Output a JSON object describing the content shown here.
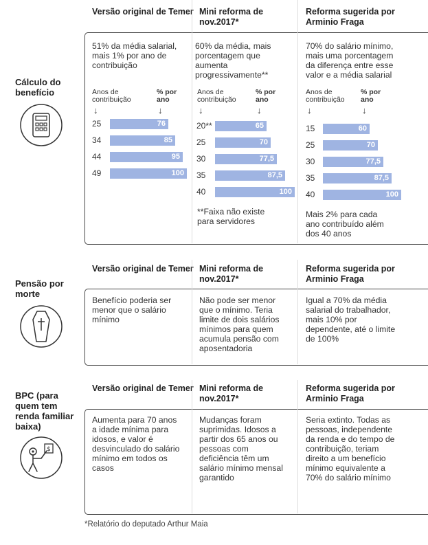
{
  "columns": [
    "Versão original de Temer",
    "Mini reforma de nov.2017*",
    "Reforma sugerida por Arminio Fraga"
  ],
  "sections": {
    "calculo": {
      "label": "Cálculo do benefício",
      "descriptions": [
        "51% da média salarial, mais 1% por ano de contribuição",
        "60% da média, mais porcentagem que aumenta progressivamente**",
        "70% do salário mínimo, mais uma porcentagem da diferença entre esse valor e a média salarial"
      ],
      "axis_left": "Anos de contribuição",
      "axis_right": "% por ano",
      "arrow": "↓",
      "note_mini": "**Faixa não existe para servidores",
      "note_fraga": "Mais 2% para cada ano contribuído além dos 40 anos"
    },
    "pensao": {
      "label": "Pensão por morte",
      "descriptions": [
        "Benefício poderia ser menor que o salário mínimo",
        "Não pode ser menor que o mínimo. Teria limite de dois salários mínimos para quem acumula pensão com aposentadoria",
        "Igual a 70% da média salarial do trabalhador, mais 10% por dependente, até o limite de 100%"
      ]
    },
    "bpc": {
      "label": "BPC (para quem tem renda familiar baixa)",
      "descriptions": [
        "Aumenta para 70 anos a idade mínima para idosos, e valor é desvinculado do salário mínimo em todos os casos",
        "Mudanças foram suprimidas. Idosos a partir dos 65 anos ou pessoas com deficiência têm um salário mínimo mensal garantido",
        "Seria extinto. Todas as pessoas, independente da renda e do tempo de contribuição, teriam direito a um benefício mínimo equivalente a 70% do salário mínimo"
      ]
    }
  },
  "footnote": "*Relatório do deputado Arthur Maia",
  "chart_data": [
    {
      "type": "bar",
      "name": "Versão original de Temer",
      "categories": [
        "25",
        "34",
        "44",
        "49"
      ],
      "values": [
        76,
        85,
        95,
        100
      ],
      "value_labels": [
        "76",
        "85",
        "95",
        "100"
      ],
      "xlabel": "Anos de contribuição",
      "ylabel": "% por ano"
    },
    {
      "type": "bar",
      "name": "Mini reforma de nov.2017*",
      "categories": [
        "20**",
        "25",
        "30",
        "35",
        "40"
      ],
      "values": [
        65,
        70,
        77.5,
        87.5,
        100
      ],
      "value_labels": [
        "65",
        "70",
        "77,5",
        "87,5",
        "100"
      ],
      "xlabel": "Anos de contribuição",
      "ylabel": "% por ano"
    },
    {
      "type": "bar",
      "name": "Reforma sugerida por Arminio Fraga",
      "categories": [
        "15",
        "25",
        "30",
        "35",
        "40"
      ],
      "values": [
        60,
        70,
        77.5,
        87.5,
        100
      ],
      "value_labels": [
        "60",
        "70",
        "77,5",
        "87,5",
        "100"
      ],
      "xlabel": "Anos de contribuição",
      "ylabel": "% por ano"
    }
  ],
  "colors": {
    "bar": "#9fb4e2",
    "frame": "#444444",
    "separator": "#dcdcdc"
  },
  "icons": [
    "calculator-icon",
    "coffin-icon",
    "person-money-icon"
  ]
}
